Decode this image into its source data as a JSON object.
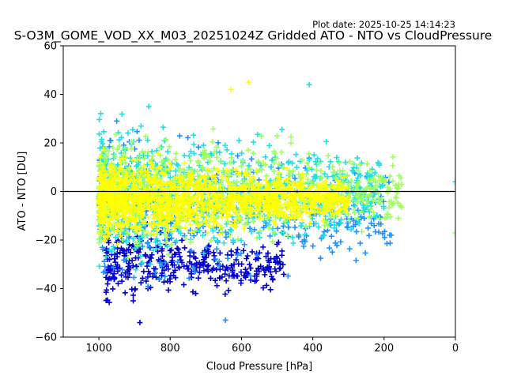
{
  "plot_date": "Plot date: 2025-10-25 14:14:23",
  "chart_data": {
    "type": "scatter",
    "title": "S-O3M_GOME_VOD_XX_M03_20251024Z Gridded ATO - NTO vs CloudPressure",
    "xlabel": "Cloud Pressure [hPa]",
    "ylabel": "ATO - NTO [DU]",
    "xlim": [
      1100,
      0
    ],
    "ylim": [
      -60,
      60
    ],
    "x_inverted": true,
    "xticks": [
      1000,
      800,
      600,
      400,
      200,
      0
    ],
    "yticks": [
      60,
      40,
      20,
      0,
      -20,
      -40,
      -60
    ],
    "grid": false,
    "legend": "none",
    "marker": "+",
    "reference_line": {
      "y": 0,
      "color": "#000000"
    },
    "colors": {
      "dark_blue": "#0000cc",
      "blue": "#1e90ff",
      "cyan": "#22e0e0",
      "light_green": "#a0ff60",
      "yellow": "#ffff00"
    },
    "clusters": [
      {
        "color": "#ffff00",
        "x_range": [
          1000,
          300
        ],
        "y_center": -3,
        "y_spread": 14,
        "density": "very high"
      },
      {
        "color": "#a0ff60",
        "x_range": [
          1000,
          150
        ],
        "y_center": 0,
        "y_spread": 22,
        "density": "high"
      },
      {
        "color": "#22e0e0",
        "x_range": [
          1000,
          200
        ],
        "y_center": 0,
        "y_spread": 26,
        "density": "high"
      },
      {
        "color": "#1e90ff",
        "x_range": [
          1000,
          180
        ],
        "y_center": -10,
        "y_spread": 30,
        "density": "medium"
      },
      {
        "color": "#0000cc",
        "x_range": [
          980,
          480
        ],
        "y_center": -30,
        "y_spread": 14,
        "density": "medium"
      }
    ],
    "notable_points": [
      {
        "x": 410,
        "y": 44,
        "color": "#22e0e0"
      },
      {
        "x": 580,
        "y": 45,
        "color": "#ffff00"
      },
      {
        "x": 630,
        "y": 42,
        "color": "#ffff00"
      },
      {
        "x": 0,
        "y": 4,
        "color": "#22e0e0"
      },
      {
        "x": 0,
        "y": -17,
        "color": "#a0ff60"
      },
      {
        "x": 885,
        "y": -54,
        "color": "#0000cc"
      },
      {
        "x": 645,
        "y": -53,
        "color": "#1e90ff"
      },
      {
        "x": 160,
        "y": -11,
        "color": "#a0ff60"
      },
      {
        "x": 180,
        "y": -18,
        "color": "#1e90ff"
      },
      {
        "x": 950,
        "y": 29,
        "color": "#1e90ff"
      }
    ]
  }
}
